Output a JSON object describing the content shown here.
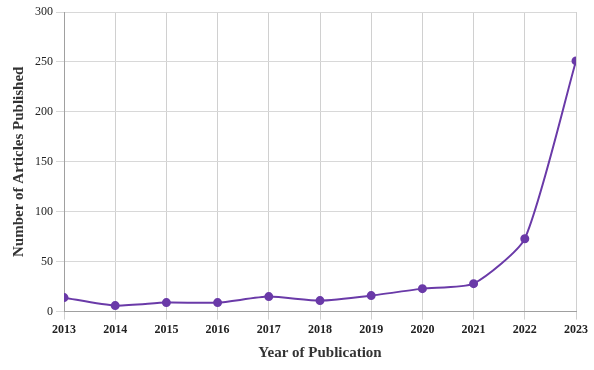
{
  "chart_data": {
    "type": "line",
    "x_label": "Year of Publication",
    "y_label": "Number of Articles Published",
    "categories": [
      "2013",
      "2014",
      "2015",
      "2016",
      "2017",
      "2018",
      "2019",
      "2020",
      "2021",
      "2022",
      "2023"
    ],
    "values": [
      14,
      6,
      9,
      9,
      15,
      11,
      16,
      23,
      28,
      73,
      251
    ],
    "color": "#6a3aa8",
    "marker": "circle",
    "ylim": [
      0,
      300
    ],
    "yticks": [
      0,
      50,
      100,
      150,
      200,
      250,
      300
    ],
    "grid": true
  }
}
